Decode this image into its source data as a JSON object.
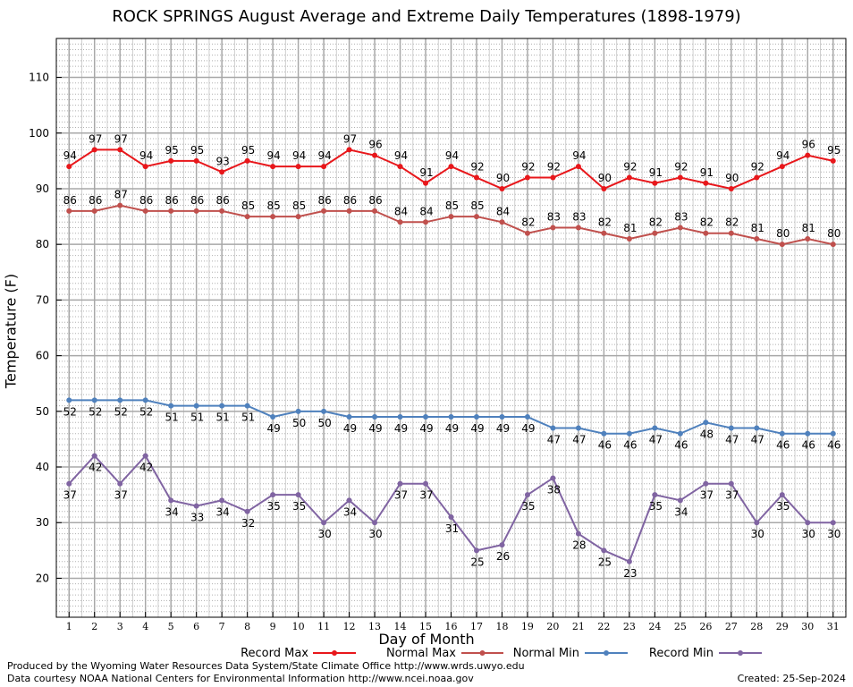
{
  "chart_data": {
    "type": "line",
    "title": "ROCK SPRINGS August Average and Extreme Daily Temperatures (1898-1979)",
    "xlabel": "Day of Month",
    "ylabel": "Temperature (F)",
    "x": [
      1,
      2,
      3,
      4,
      5,
      6,
      7,
      8,
      9,
      10,
      11,
      12,
      13,
      14,
      15,
      16,
      17,
      18,
      19,
      20,
      21,
      22,
      23,
      24,
      25,
      26,
      27,
      28,
      29,
      30,
      31
    ],
    "xlim": [
      0.5,
      31.5
    ],
    "ylim": [
      13,
      117
    ],
    "y_ticks": [
      20,
      30,
      40,
      50,
      60,
      70,
      80,
      90,
      100,
      110
    ],
    "grid": true,
    "legend_position": "bottom",
    "series": [
      {
        "name": "Record Max",
        "color": "#e8171b",
        "label_position": "above",
        "values": [
          94,
          97,
          97,
          94,
          95,
          95,
          93,
          95,
          94,
          94,
          94,
          97,
          96,
          94,
          91,
          94,
          92,
          90,
          92,
          92,
          94,
          90,
          92,
          91,
          92,
          91,
          90,
          92,
          94,
          96,
          95
        ]
      },
      {
        "name": "Normal Max",
        "color": "#c0504d",
        "label_position": "above",
        "values": [
          86,
          86,
          87,
          86,
          86,
          86,
          86,
          85,
          85,
          85,
          86,
          86,
          86,
          84,
          84,
          85,
          85,
          84,
          82,
          83,
          83,
          82,
          81,
          82,
          83,
          82,
          82,
          81,
          80,
          81,
          80
        ]
      },
      {
        "name": "Normal Min",
        "color": "#4f81bd",
        "label_position": "below",
        "values": [
          52,
          52,
          52,
          52,
          51,
          51,
          51,
          51,
          49,
          50,
          50,
          49,
          49,
          49,
          49,
          49,
          49,
          49,
          49,
          47,
          47,
          46,
          46,
          47,
          46,
          48,
          47,
          47,
          46,
          46,
          46
        ]
      },
      {
        "name": "Record Min",
        "color": "#8064a2",
        "label_position": "below",
        "values": [
          37,
          42,
          37,
          42,
          34,
          33,
          34,
          32,
          35,
          35,
          30,
          34,
          30,
          37,
          37,
          31,
          25,
          26,
          35,
          38,
          28,
          25,
          23,
          35,
          34,
          37,
          37,
          30,
          35,
          30,
          30
        ]
      }
    ]
  },
  "footer": {
    "line1": "Produced by the Wyoming Water Resources Data System/State Climate Office http://www.wrds.uwyo.edu",
    "line2": "Data courtesy NOAA National Centers for Environmental Information http://www.ncei.noaa.gov",
    "created": "Created:  25-Sep-2024"
  }
}
